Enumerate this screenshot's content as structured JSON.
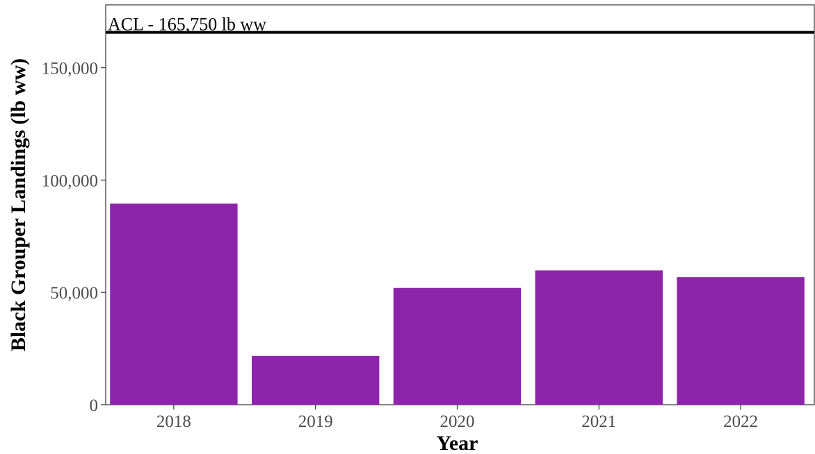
{
  "chart_data": {
    "type": "bar",
    "categories": [
      "2018",
      "2019",
      "2020",
      "2021",
      "2022"
    ],
    "values": [
      89500,
      21700,
      52000,
      59800,
      56800
    ],
    "xlabel": "Year",
    "ylabel": "Black Grouper Landings (lb ww)",
    "ylim": [
      0,
      178000
    ],
    "yticks": [
      0,
      50000,
      100000,
      150000
    ],
    "ytick_labels": [
      "0",
      "50,000",
      "100,000",
      "150,000"
    ],
    "grid": false,
    "bar_color": "#8e24aa",
    "reference_line": {
      "value": 165750,
      "label": "ACL - 165,750 lb ww",
      "color": "#000000"
    }
  }
}
